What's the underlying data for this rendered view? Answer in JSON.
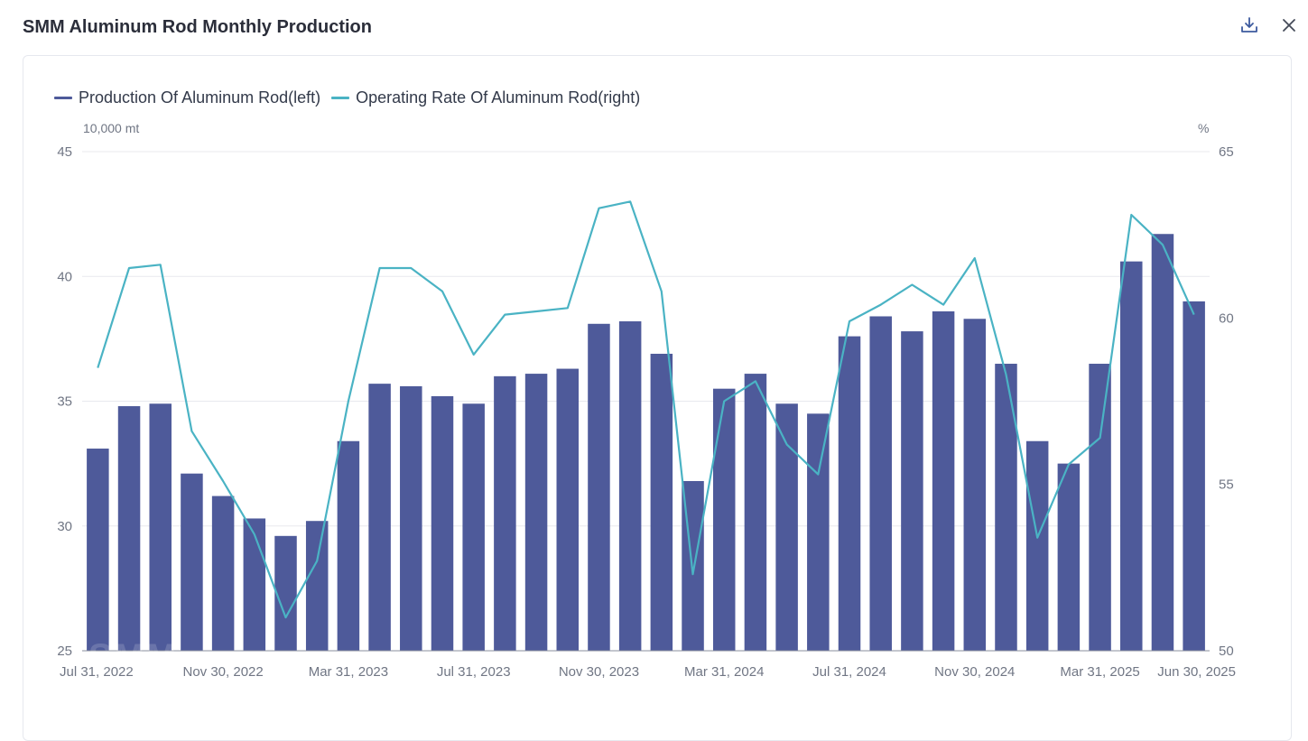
{
  "header": {
    "title": "SMM Aluminum Rod Monthly Production"
  },
  "toolbar": {
    "download_icon": "download-icon",
    "close_icon": "close-icon"
  },
  "colors": {
    "bar": "#4e5a9a",
    "line": "#4ab3c4",
    "grid": "#e8e9ee",
    "axis": "#8a8f9c"
  },
  "watermark": "SMM",
  "chart_data": {
    "type": "bar",
    "categories": [
      "Jul 31, 2022",
      "Aug 31, 2022",
      "Sep 30, 2022",
      "Oct 31, 2022",
      "Nov 30, 2022",
      "Dec 31, 2022",
      "Jan 31, 2023",
      "Feb 28, 2023",
      "Mar 31, 2023",
      "Apr 30, 2023",
      "May 31, 2023",
      "Jun 30, 2023",
      "Jul 31, 2023",
      "Aug 31, 2023",
      "Sep 30, 2023",
      "Oct 31, 2023",
      "Nov 30, 2023",
      "Dec 31, 2023",
      "Jan 31, 2024",
      "Feb 29, 2024",
      "Mar 31, 2024",
      "Apr 30, 2024",
      "May 31, 2024",
      "Jun 30, 2024",
      "Jul 31, 2024",
      "Aug 31, 2024",
      "Sep 30, 2024",
      "Oct 31, 2024",
      "Nov 30, 2024",
      "Dec 31, 2024",
      "Jan 31, 2025",
      "Feb 28, 2025",
      "Mar 31, 2025",
      "Apr 30, 2025",
      "May 31, 2025",
      "Jun 30, 2025"
    ],
    "xtick_labels": [
      "Jul 31, 2022",
      "Nov 30, 2022",
      "Mar 31, 2023",
      "Jul 31, 2023",
      "Nov 30, 2023",
      "Mar 31, 2024",
      "Jul 31, 2024",
      "Nov 30, 2024",
      "Mar 31, 2025",
      "Jun 30, 2025"
    ],
    "series": [
      {
        "name": "Production Of Aluminum Rod(left)",
        "type": "bar",
        "axis": "left",
        "values": [
          33.1,
          34.8,
          34.9,
          32.1,
          31.2,
          30.3,
          29.6,
          30.2,
          33.4,
          35.7,
          35.6,
          35.2,
          34.9,
          36.0,
          36.1,
          36.3,
          38.1,
          38.2,
          36.9,
          31.8,
          35.5,
          36.1,
          34.9,
          34.5,
          37.6,
          38.4,
          37.8,
          38.6,
          38.3,
          36.5,
          33.4,
          32.5,
          36.5,
          40.6,
          41.7,
          39.0
        ]
      },
      {
        "name": "Operating Rate Of Aluminum Rod(right)",
        "type": "line",
        "axis": "right",
        "values": [
          58.5,
          61.5,
          61.6,
          56.6,
          55.1,
          53.5,
          51.0,
          52.7,
          57.5,
          61.5,
          61.5,
          60.8,
          58.9,
          60.1,
          60.2,
          60.3,
          63.3,
          63.5,
          60.8,
          52.3,
          57.5,
          58.1,
          56.2,
          55.3,
          59.9,
          60.4,
          61.0,
          60.4,
          61.8,
          58.3,
          53.4,
          55.6,
          56.4,
          63.1,
          62.2,
          60.1
        ]
      }
    ],
    "left_axis": {
      "unit": "10,000 mt",
      "min": 25,
      "max": 45,
      "ticks": [
        25,
        30,
        35,
        40,
        45
      ]
    },
    "right_axis": {
      "unit": "%",
      "min": 50,
      "max": 65,
      "ticks": [
        50,
        55,
        60,
        65
      ]
    },
    "grid": true,
    "legend_position": "top-left"
  }
}
